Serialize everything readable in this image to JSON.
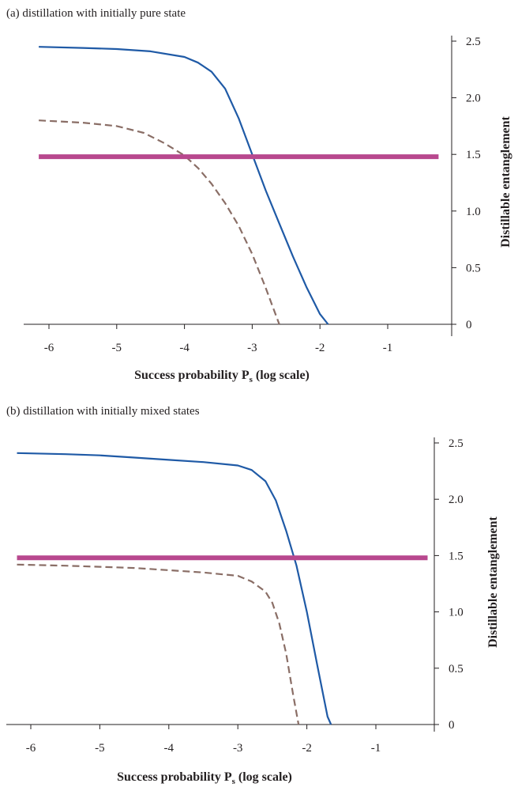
{
  "panels": [
    {
      "title": "(a) distillation with initially pure state"
    },
    {
      "title": "(b) distillation with initially  mixed states"
    }
  ],
  "chart_data": [
    {
      "type": "line",
      "title": "(a) distillation with initially pure state",
      "xlabel": "Success probability P",
      "xlabel_sub": "s",
      "xlabel_suffix": " (log scale)",
      "ylabel": "Distillable entanglement",
      "xlim": [
        -6.4,
        -0.2
      ],
      "ylim": [
        0,
        2.5
      ],
      "x_ticks": [
        -6,
        -5,
        -4,
        -3,
        -2,
        -1
      ],
      "x_tick_labels": [
        "-6",
        "-5",
        "-4",
        "-3",
        "-2",
        "-1"
      ],
      "y_ticks": [
        0,
        0.5,
        1.0,
        1.5,
        2.0,
        2.5
      ],
      "y_tick_labels": [
        "0",
        "0.5",
        "1.0",
        "1.5",
        "2.0",
        "2.5"
      ],
      "y_axis_side": "right",
      "series": [
        {
          "color": "#1f5aa6",
          "style": "solid",
          "x": [
            -6.15,
            -5.5,
            -5.0,
            -4.5,
            -4.0,
            -3.8,
            -3.6,
            -3.4,
            -3.2,
            -3.0,
            -2.8,
            -2.6,
            -2.4,
            -2.2,
            -2.0,
            -1.88
          ],
          "y": [
            2.45,
            2.44,
            2.43,
            2.41,
            2.36,
            2.31,
            2.23,
            2.08,
            1.82,
            1.5,
            1.18,
            0.89,
            0.6,
            0.33,
            0.09,
            0.0
          ]
        },
        {
          "color": "#8a6e66",
          "style": "dashed",
          "x": [
            -6.15,
            -5.5,
            -5.0,
            -4.6,
            -4.3,
            -4.0,
            -3.8,
            -3.6,
            -3.4,
            -3.2,
            -3.0,
            -2.8,
            -2.7,
            -2.6
          ],
          "y": [
            1.8,
            1.78,
            1.75,
            1.69,
            1.6,
            1.49,
            1.38,
            1.24,
            1.07,
            0.87,
            0.62,
            0.32,
            0.16,
            0.0
          ]
        },
        {
          "color": "#b8488e",
          "style": "thick",
          "x": [
            -6.15,
            -0.25
          ],
          "y": [
            1.48,
            1.48
          ]
        }
      ]
    },
    {
      "type": "line",
      "title": "(b) distillation with initially  mixed states",
      "xlabel": "Success probability P",
      "xlabel_sub": "s",
      "xlabel_suffix": " (log scale)",
      "ylabel": "Distillable entanglement",
      "xlim": [
        -6.4,
        -0.2
      ],
      "ylim": [
        0,
        2.5
      ],
      "x_ticks": [
        -6,
        -5,
        -4,
        -3,
        -2,
        -1
      ],
      "x_tick_labels": [
        "-6",
        "-5",
        "-4",
        "-3",
        "-2",
        "-1"
      ],
      "y_ticks": [
        0,
        0.5,
        1.0,
        1.5,
        2.0,
        2.5
      ],
      "y_tick_labels": [
        "0",
        "0.5",
        "1.0",
        "1.5",
        "2.0",
        "2.5"
      ],
      "y_axis_side": "right",
      "series": [
        {
          "color": "#1f5aa6",
          "style": "solid",
          "x": [
            -6.2,
            -5.5,
            -5.0,
            -4.5,
            -4.0,
            -3.5,
            -3.0,
            -2.8,
            -2.6,
            -2.45,
            -2.3,
            -2.15,
            -2.0,
            -1.85,
            -1.7,
            -1.65
          ],
          "y": [
            2.41,
            2.4,
            2.39,
            2.37,
            2.35,
            2.33,
            2.3,
            2.26,
            2.16,
            1.99,
            1.72,
            1.41,
            1.0,
            0.53,
            0.07,
            0.0
          ]
        },
        {
          "color": "#8a6e66",
          "style": "dashed",
          "x": [
            -6.2,
            -5.5,
            -5.0,
            -4.5,
            -4.0,
            -3.5,
            -3.0,
            -2.8,
            -2.6,
            -2.5,
            -2.4,
            -2.3,
            -2.2,
            -2.12
          ],
          "y": [
            1.42,
            1.41,
            1.4,
            1.39,
            1.37,
            1.35,
            1.32,
            1.27,
            1.18,
            1.08,
            0.9,
            0.63,
            0.27,
            0.0
          ]
        },
        {
          "color": "#b8488e",
          "style": "thick",
          "x": [
            -6.2,
            -0.25
          ],
          "y": [
            1.48,
            1.48
          ]
        }
      ]
    }
  ]
}
